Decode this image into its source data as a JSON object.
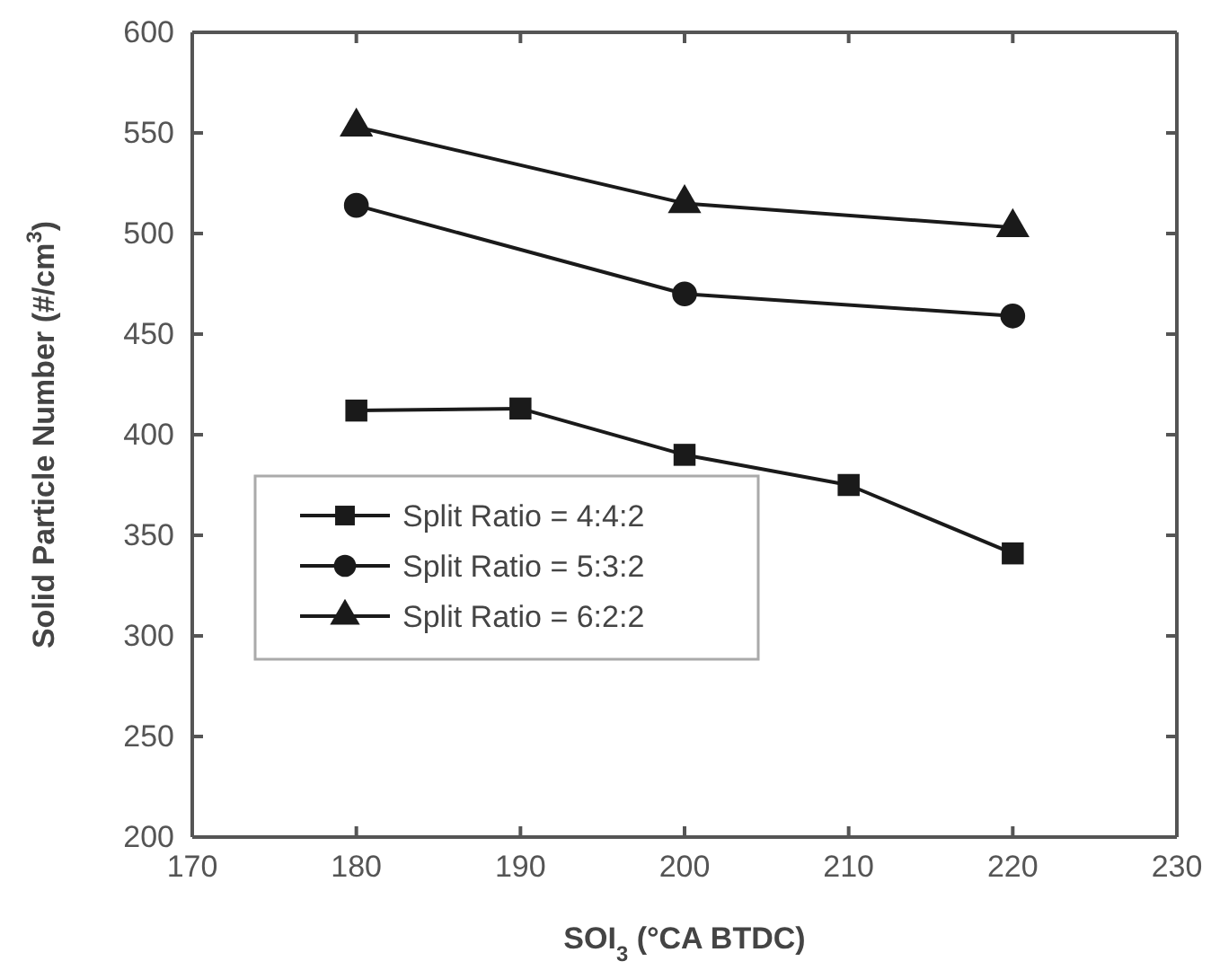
{
  "chart_data": {
    "type": "line",
    "xlabel": "SOI$_{3}$ (°CA BTDC)",
    "ylabel": "Solid Particle Number (#/cm$^{3}$)",
    "xlim": [
      170,
      230
    ],
    "xticks": [
      170,
      180,
      190,
      200,
      210,
      220,
      230
    ],
    "ylim": [
      200,
      600
    ],
    "yticks": [
      200,
      250,
      300,
      350,
      400,
      450,
      500,
      550,
      600
    ],
    "legend": "left",
    "line_style": "solid",
    "series": [
      {
        "name": "Split Ratio = 4:4:2",
        "color": "#1a1a1a",
        "marker": "square",
        "x": [
          180,
          190,
          200,
          210,
          220
        ],
        "values": [
          412,
          413,
          390,
          375,
          341
        ]
      },
      {
        "name": "Split Ratio = 5:3:2",
        "color": "#1a1a1a",
        "marker": "circle",
        "x": [
          180,
          200,
          220
        ],
        "values": [
          514,
          470,
          459
        ]
      },
      {
        "name": "Split Ratio = 6:2:2",
        "color": "#1a1a1a",
        "marker": "triangle",
        "x": [
          180,
          200,
          220
        ],
        "values": [
          553,
          515,
          503
        ]
      }
    ]
  }
}
